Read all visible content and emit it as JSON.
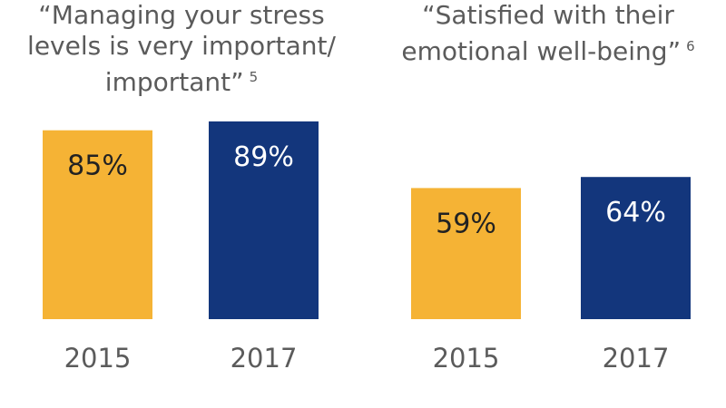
{
  "colors": {
    "2015": "#f5b335",
    "2017": "#13367c",
    "label_on_2015": "#222222",
    "label_on_2017": "#ffffff"
  },
  "chart_data": [
    {
      "type": "bar",
      "title_lines": [
        "“Managing your stress",
        "levels is very important/",
        "important”"
      ],
      "footnote": "5",
      "categories": [
        "2015",
        "2017"
      ],
      "values": [
        85,
        89
      ],
      "value_labels": [
        "85%",
        "89%"
      ],
      "xlabel": "",
      "ylabel": "",
      "ylim": [
        0,
        100
      ],
      "grid": false
    },
    {
      "type": "bar",
      "title_lines": [
        "“Satisfied with their",
        "emotional well-being”"
      ],
      "footnote": "6",
      "categories": [
        "2015",
        "2017"
      ],
      "values": [
        59,
        64
      ],
      "value_labels": [
        "59%",
        "64%"
      ],
      "xlabel": "",
      "ylabel": "",
      "ylim": [
        0,
        100
      ],
      "grid": false
    }
  ]
}
